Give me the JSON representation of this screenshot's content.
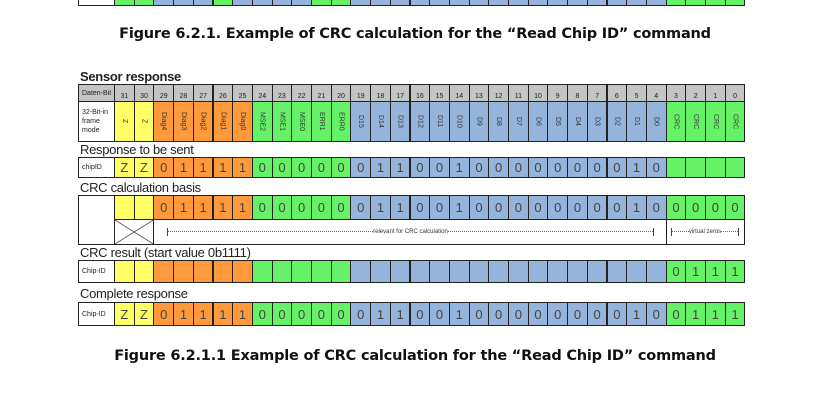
{
  "captions": {
    "top": "Figure 6.2.1. Example of CRC calculation for the “Read Chip ID” command",
    "bottom": "Figure 6.2.1.1 Example of CRC calculation for the “Read Chip ID” command"
  },
  "colors": {
    "Z": "#ffff66",
    "diag": "#ff9a3c",
    "status": "#66f266",
    "data": "#95b4dc",
    "crc": "#66f266",
    "header": "#c4c4c4",
    "label": "#ffffff"
  },
  "sections": {
    "sensor_response": "Sensor response",
    "response_to_send": "Response to be sent",
    "crc_basis": "CRC calculation basis",
    "crc_result": "CRC result (start value 0b1111)",
    "complete": "Complete response"
  },
  "header": {
    "bit_label": "Daten-Bit",
    "mode_label": "32-Bit-in frame mode",
    "bits": [
      "31",
      "30",
      "29",
      "28",
      "27",
      "26",
      "25",
      "24",
      "23",
      "22",
      "21",
      "20",
      "19",
      "18",
      "17",
      "16",
      "15",
      "14",
      "13",
      "12",
      "11",
      "10",
      "9",
      "8",
      "7",
      "6",
      "5",
      "4",
      "3",
      "2",
      "1",
      "0"
    ],
    "names": [
      "Z",
      "Z",
      "Diag4",
      "Diag3",
      "Diag2",
      "Diag1",
      "Diag0",
      "MSE2",
      "MSE1",
      "MSE0",
      "ERR1",
      "ERR0",
      "D15",
      "D14",
      "D13",
      "D12",
      "D11",
      "D10",
      "D9",
      "D8",
      "D7",
      "D6",
      "D5",
      "D4",
      "D3",
      "D2",
      "D1",
      "D0",
      "CRC",
      "CRC",
      "CRC",
      "CRC"
    ]
  },
  "rows": {
    "response": {
      "label": "chipID",
      "values": [
        "Z",
        "Z",
        "0",
        "1",
        "1",
        "1",
        "1",
        "0",
        "0",
        "0",
        "0",
        "0",
        "0",
        "1",
        "1",
        "0",
        "0",
        "1",
        "0",
        "0",
        "0",
        "0",
        "0",
        "0",
        "0",
        "0",
        "1",
        "0",
        "",
        "",
        "",
        ""
      ]
    },
    "basis": {
      "label": "",
      "values": [
        "",
        "",
        "0",
        "1",
        "1",
        "1",
        "1",
        "0",
        "0",
        "0",
        "0",
        "0",
        "0",
        "1",
        "1",
        "0",
        "0",
        "1",
        "0",
        "0",
        "0",
        "0",
        "0",
        "0",
        "0",
        "0",
        "1",
        "0",
        "0",
        "0",
        "0",
        "0"
      ],
      "relevant_note": "relevant for CRC calculation",
      "virtual_note": "virtual zeros"
    },
    "result": {
      "label": "Chip-ID",
      "values": [
        "",
        "",
        "",
        "",
        "",
        "",
        "",
        "",
        "",
        "",
        "",
        "",
        "",
        "",
        "",
        "",
        "",
        "",
        "",
        "",
        "",
        "",
        "",
        "",
        "",
        "",
        "",
        "",
        "0",
        "1",
        "1",
        "1"
      ]
    },
    "complete": {
      "label": "Chip-ID",
      "values": [
        "Z",
        "Z",
        "0",
        "1",
        "1",
        "1",
        "1",
        "0",
        "0",
        "0",
        "0",
        "0",
        "0",
        "1",
        "1",
        "0",
        "0",
        "1",
        "0",
        "0",
        "0",
        "0",
        "0",
        "0",
        "0",
        "0",
        "1",
        "0",
        "0",
        "1",
        "1",
        "1"
      ]
    }
  }
}
